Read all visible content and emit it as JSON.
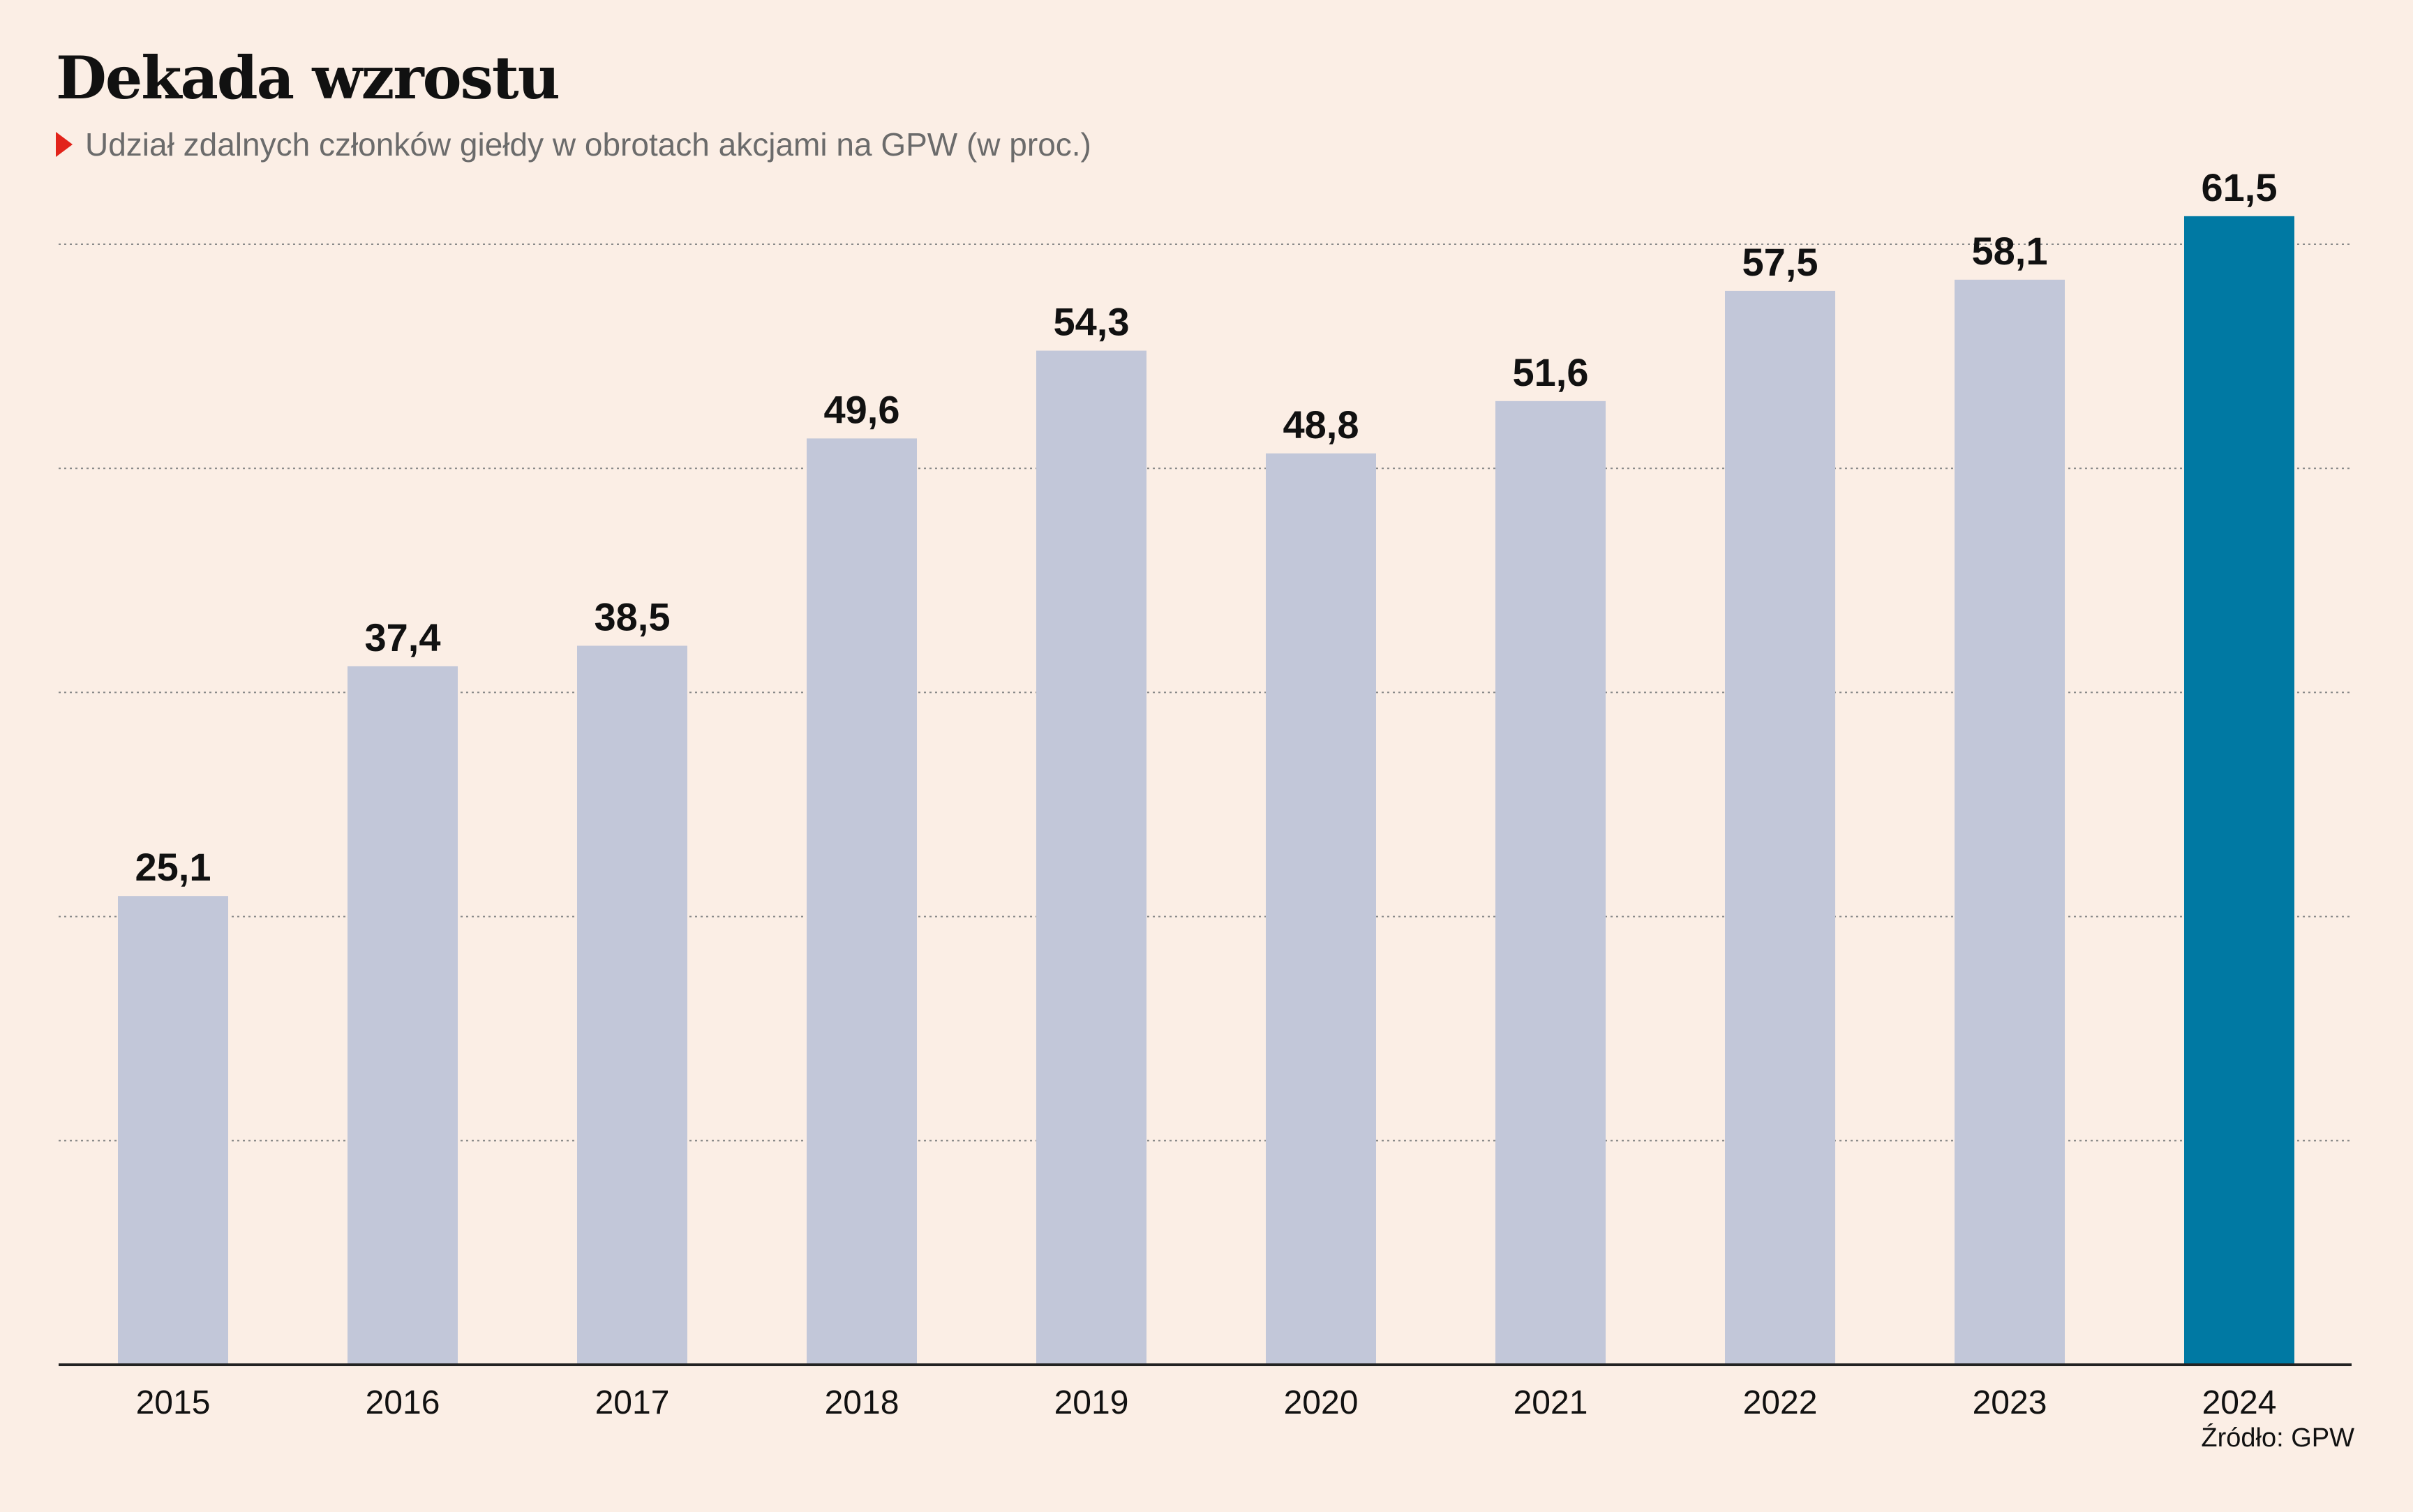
{
  "header": {
    "title": "Dekada wzrostu",
    "subtitle": "Udział zdalnych członków giełdy w obrotach akcjami na GPW (w proc.)"
  },
  "footer": {
    "source": "Źródło: GPW"
  },
  "colors": {
    "background": "#fbeee5",
    "bar": "#c2c7d9",
    "bar_highlight": "#0079a3",
    "marker": "#e2231a",
    "gridline": "#8a8a8a",
    "axis": "#222222"
  },
  "chart_data": {
    "type": "bar",
    "title": "Dekada wzrostu",
    "subtitle": "Udział zdalnych członków giełdy w obrotach akcjami na GPW (w proc.)",
    "xlabel": "",
    "ylabel": "",
    "categories": [
      "2015",
      "2016",
      "2017",
      "2018",
      "2019",
      "2020",
      "2021",
      "2022",
      "2023",
      "2024"
    ],
    "values": [
      25.1,
      37.4,
      38.5,
      49.6,
      54.3,
      48.8,
      51.6,
      57.5,
      58.1,
      61.5
    ],
    "value_labels": [
      "25,1",
      "37,4",
      "38,5",
      "49,6",
      "54,3",
      "48,8",
      "51,6",
      "57,5",
      "58,1",
      "61,5"
    ],
    "highlight": "2024",
    "ylim": [
      0,
      60
    ],
    "gridlines": [
      12,
      24,
      36,
      48,
      60
    ],
    "grid": true,
    "grid_style": "dotted",
    "legend": "none"
  }
}
